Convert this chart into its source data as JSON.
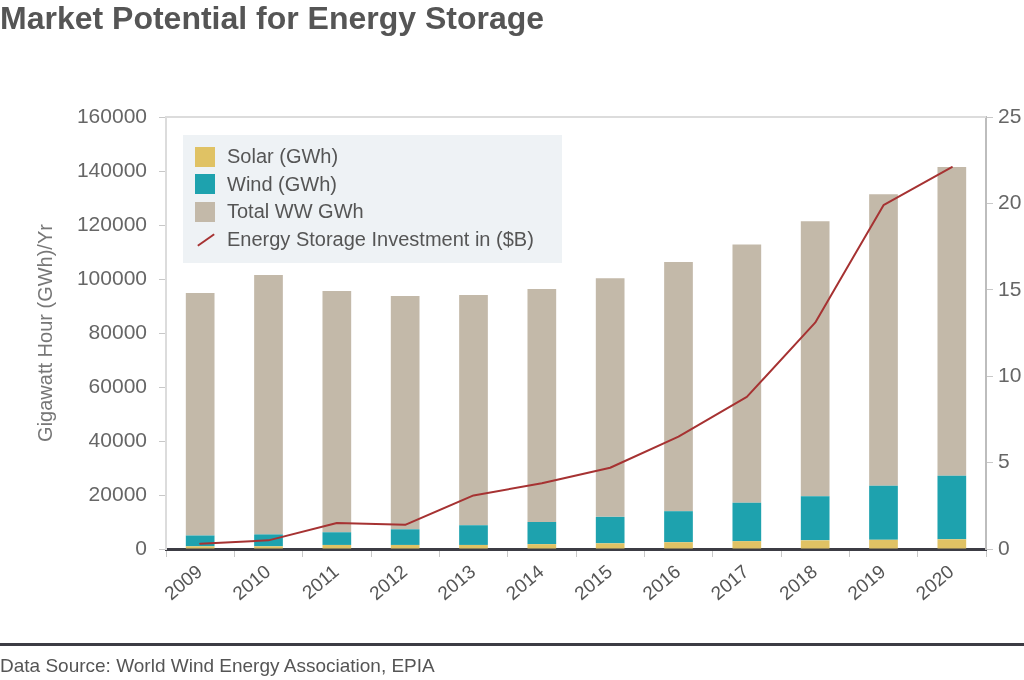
{
  "chart_data": {
    "type": "bar",
    "title": "Market Potential for Energy Storage",
    "ylabel": "Gigawatt Hour (GWh)/Yr",
    "categories": [
      "2009",
      "2010",
      "2011",
      "2012",
      "2013",
      "2014",
      "2015",
      "2016",
      "2017",
      "2018",
      "2019",
      "2020"
    ],
    "stacked": true,
    "series": [
      {
        "name": "Solar (GWh)",
        "color": "#e0c264",
        "values": [
          1000,
          1000,
          1500,
          1500,
          1500,
          1800,
          2100,
          2500,
          2900,
          3200,
          3400,
          3600
        ]
      },
      {
        "name": "Wind (GWh)",
        "color": "#1ea2ae",
        "values": [
          4000,
          4400,
          4700,
          5800,
          7300,
          8200,
          9800,
          11500,
          14200,
          16300,
          20000,
          23500
        ]
      },
      {
        "name": "Total WW GWh",
        "color": "#c3b9a9",
        "values": [
          89800,
          96100,
          89400,
          86400,
          85300,
          86300,
          88400,
          92300,
          95700,
          101900,
          108000,
          114400
        ]
      },
      {
        "name": "Energy Storage Investment in ($B)",
        "type": "line",
        "axis": "y2",
        "color": "#a63232",
        "values": [
          0.3,
          0.5,
          1.5,
          1.4,
          3.1,
          3.8,
          4.7,
          6.5,
          8.8,
          13.1,
          19.9,
          22.1
        ]
      }
    ],
    "ylim": [
      0,
      160000
    ],
    "yticks": [
      0,
      20000,
      40000,
      60000,
      80000,
      100000,
      120000,
      140000,
      160000
    ],
    "y2lim": [
      0,
      25
    ],
    "y2ticks": [
      0,
      5,
      10,
      15,
      20,
      25
    ],
    "marker": "none",
    "legend": "top left",
    "annotations": [
      "Data Source: World Wind Energy Association, EPIA"
    ]
  }
}
